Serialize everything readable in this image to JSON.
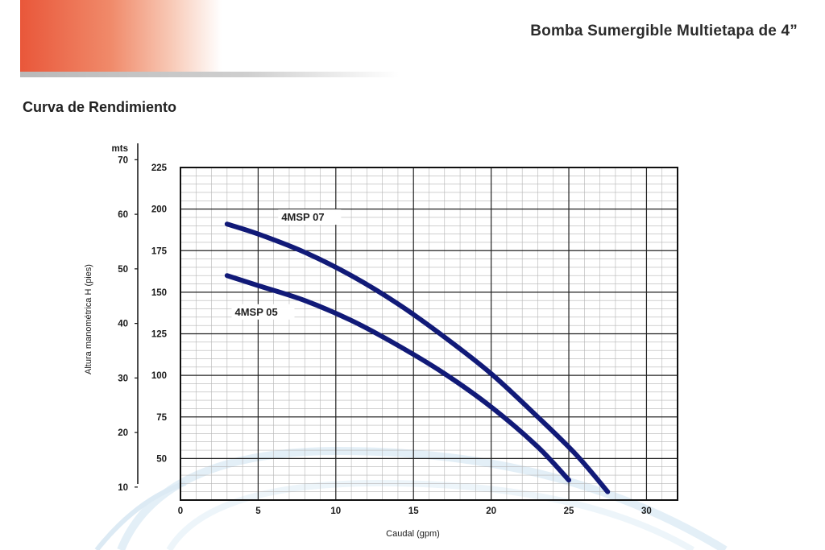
{
  "header": {
    "title": "Bomba Sumergible Multietapa de 4”",
    "accent_color": "#e9573a"
  },
  "section": {
    "title": "Curva de Rendimiento"
  },
  "chart_data": {
    "type": "line",
    "title": "",
    "xlabel": "Caudal (gpm)",
    "ylabel": "Altura manométrica H (pies)",
    "y2label": "mts",
    "xlim": [
      0,
      32
    ],
    "ylim": [
      25,
      225
    ],
    "x_ticks": [
      "0",
      "5",
      "10",
      "15",
      "20",
      "25",
      "30"
    ],
    "y_ticks": [
      "50",
      "75",
      "100",
      "125",
      "150",
      "175",
      "200",
      "225"
    ],
    "y2_ticks": [
      "10",
      "20",
      "30",
      "40",
      "50",
      "60",
      "70"
    ],
    "grid": true,
    "series_color": "#111a78",
    "series": [
      {
        "name": "4MSP 07",
        "x": [
          3,
          5,
          8,
          11,
          14,
          17,
          20,
          23,
          25.5,
          27.5
        ],
        "y": [
          191,
          185,
          174,
          160,
          143,
          123,
          101,
          75,
          52,
          30
        ]
      },
      {
        "name": "4MSP 05",
        "x": [
          3,
          5,
          8,
          11,
          14,
          17,
          20,
          23,
          25
        ],
        "y": [
          160,
          154,
          145,
          133,
          118,
          101,
          81,
          57,
          37
        ]
      }
    ]
  }
}
